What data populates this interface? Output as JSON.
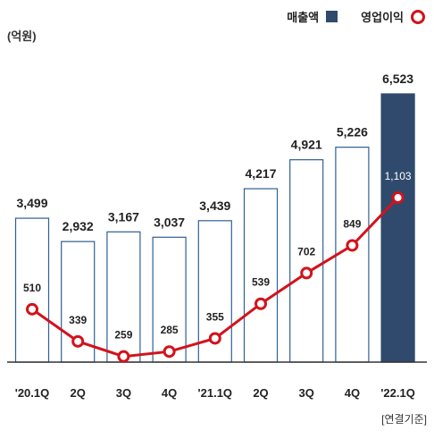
{
  "unit_label": "(억원)",
  "basis_label": "[연결기준]",
  "legend": {
    "revenue": "매출액",
    "op_profit": "영업이익"
  },
  "colors": {
    "bar_outline": "#2f5f95",
    "bar_highlight": "#2f4a6d",
    "line": "#d3121b",
    "axis": "#333333"
  },
  "chart_data": {
    "type": "bar",
    "categories": [
      "'20.1Q",
      "2Q",
      "3Q",
      "4Q",
      "'21.1Q",
      "2Q",
      "3Q",
      "4Q",
      "'22.1Q"
    ],
    "series": [
      {
        "name": "매출액",
        "type": "bar",
        "values": [
          3499,
          2932,
          3167,
          3037,
          3439,
          4217,
          4921,
          5226,
          6523
        ],
        "labels": [
          "3,499",
          "2,932",
          "3,167",
          "3,037",
          "3,439",
          "4,217",
          "4,921",
          "5,226",
          "6,523"
        ]
      },
      {
        "name": "영업이익",
        "type": "line",
        "values": [
          510,
          339,
          259,
          285,
          355,
          539,
          702,
          849,
          1103
        ],
        "labels": [
          "510",
          "339",
          "259",
          "285",
          "355",
          "539",
          "702",
          "849",
          "1,103"
        ]
      }
    ],
    "highlight_index": 8,
    "xlabel": "",
    "ylabel": "",
    "grid": false
  }
}
